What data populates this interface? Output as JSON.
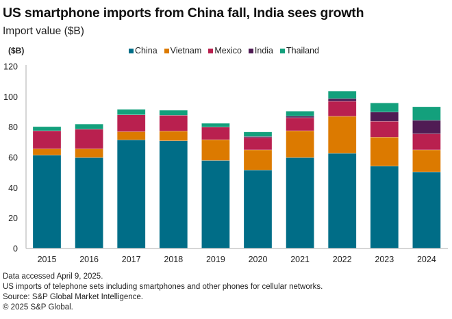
{
  "header": {
    "title": "US smartphone imports from China fall, India sees growth",
    "subtitle": "Import value ($B)",
    "unit_label": "($B)"
  },
  "chart_data": {
    "type": "bar",
    "stacked": true,
    "title": "US smartphone imports from China fall, India sees growth",
    "subtitle": "Import value ($B)",
    "xlabel": "",
    "ylabel": "($B)",
    "ylim": [
      0,
      120
    ],
    "yticks": [
      0,
      20,
      40,
      60,
      80,
      100,
      120
    ],
    "grid": false,
    "legend_position": "top-center",
    "categories": [
      "2015",
      "2016",
      "2017",
      "2018",
      "2019",
      "2020",
      "2021",
      "2022",
      "2023",
      "2024"
    ],
    "series": [
      {
        "name": "China",
        "color": "#006d87",
        "values": [
          61.5,
          59.9,
          71.6,
          71.0,
          58.0,
          51.7,
          59.9,
          62.7,
          54.3,
          50.5
        ]
      },
      {
        "name": "Vietnam",
        "color": "#dc7a00",
        "values": [
          4.2,
          5.8,
          5.4,
          6.4,
          13.7,
          13.3,
          17.7,
          24.4,
          19.1,
          14.5
        ]
      },
      {
        "name": "Mexico",
        "color": "#b9204f",
        "values": [
          11.9,
          12.9,
          11.1,
          10.4,
          8.3,
          8.1,
          8.6,
          9.9,
          10.4,
          10.6
        ]
      },
      {
        "name": "India",
        "color": "#501c54",
        "values": [
          0,
          0,
          0,
          0,
          0,
          0.7,
          1.0,
          1.8,
          6.1,
          8.9
        ]
      },
      {
        "name": "Thailand",
        "color": "#13a07c",
        "values": [
          2.7,
          3.4,
          3.6,
          3.3,
          2.5,
          3.0,
          3.3,
          4.9,
          6.0,
          8.9
        ]
      }
    ]
  },
  "footer": {
    "lines": [
      "Data accessed April 9, 2025.",
      "US imports of telephone sets including smartphones and other phones for cellular networks.",
      "Source: S&P Global Market Intelligence.",
      "© 2025 S&P Global."
    ]
  }
}
